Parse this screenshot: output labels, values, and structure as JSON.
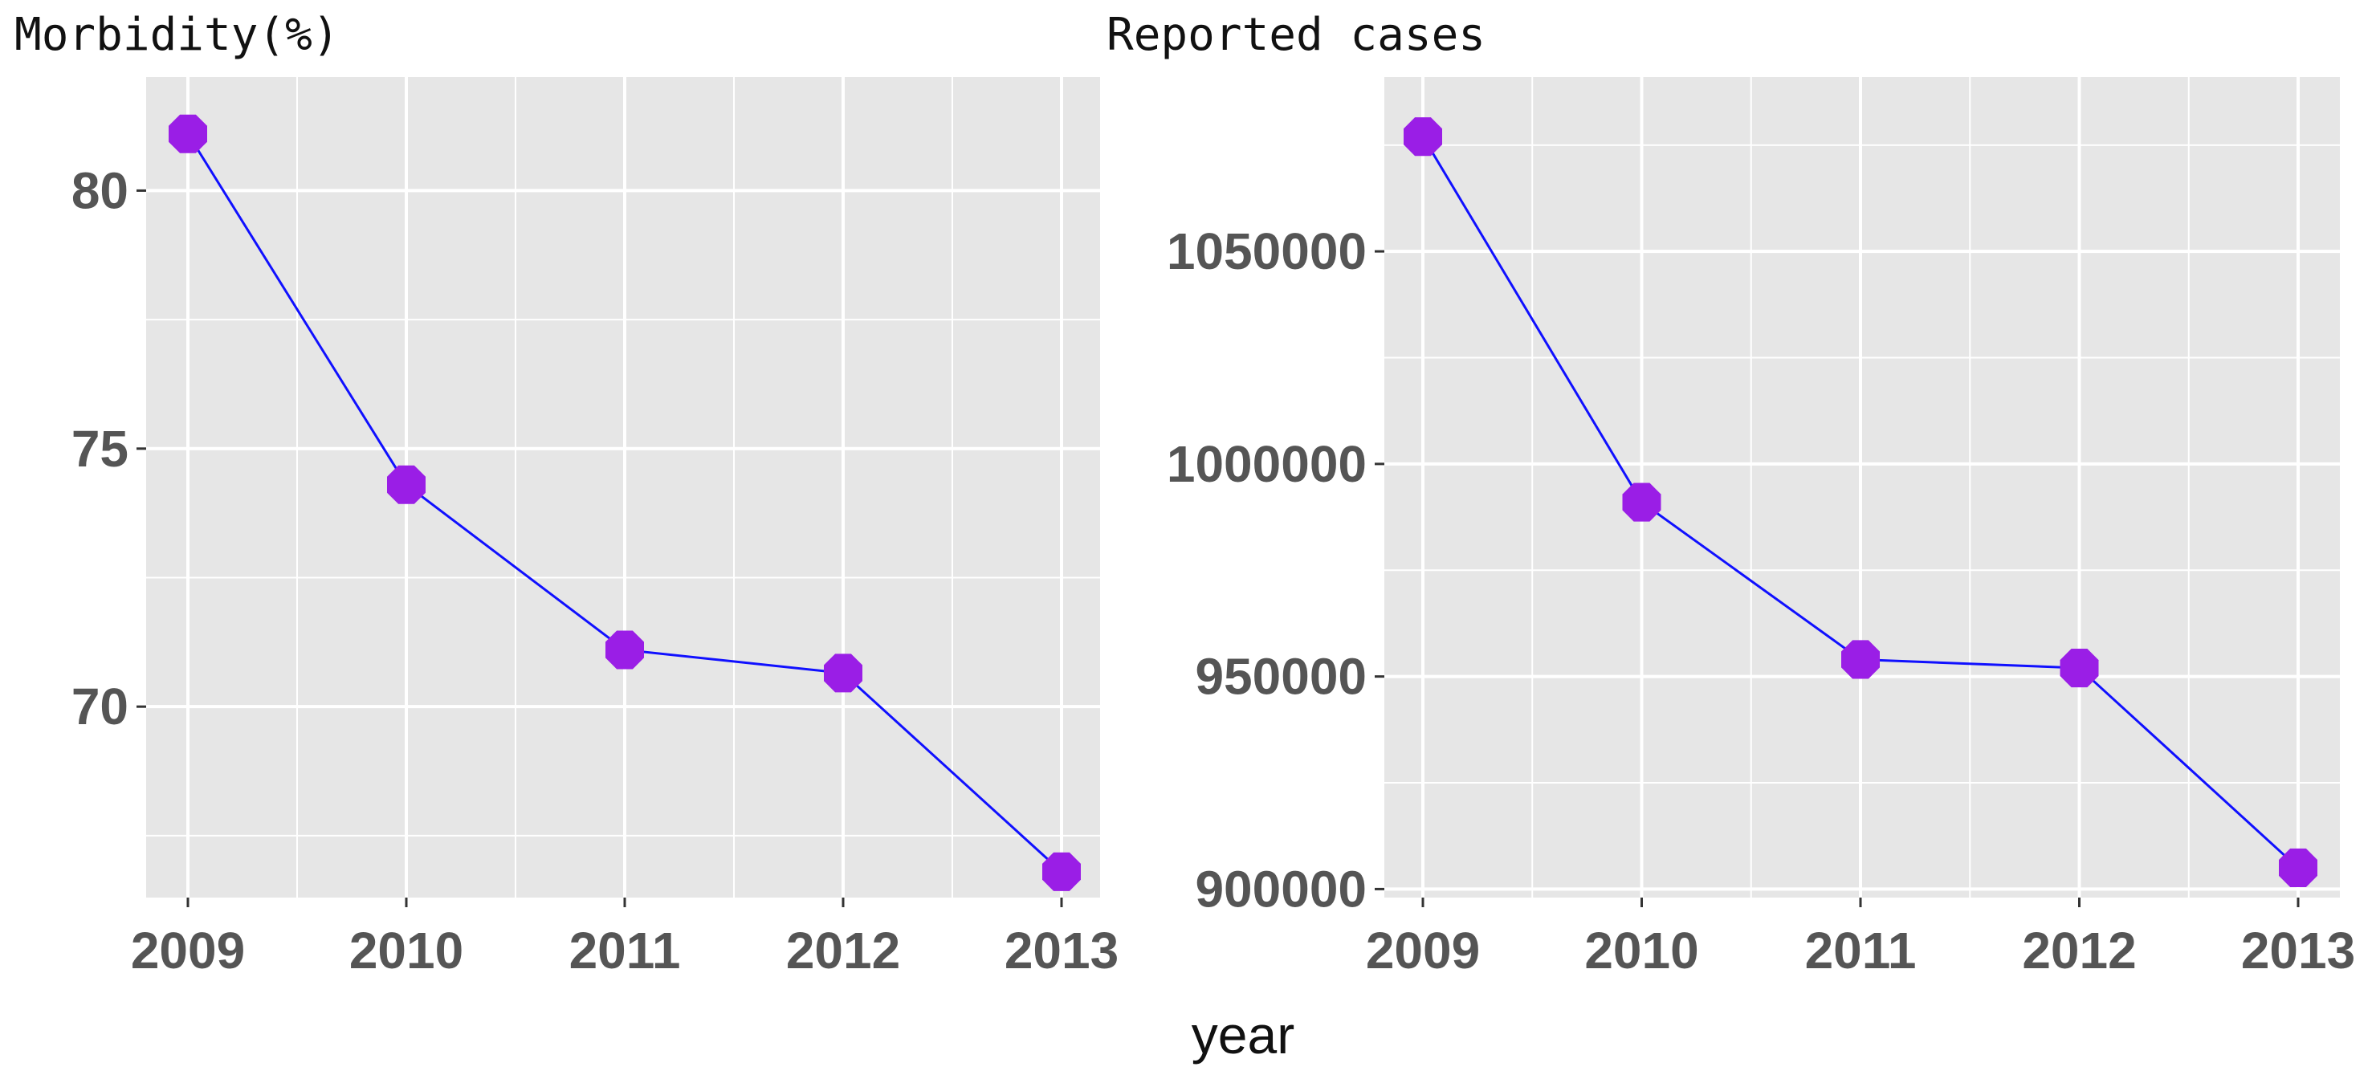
{
  "chart_data": [
    {
      "type": "line",
      "title": "Morbidity(%)",
      "xlabel": "year",
      "ylabel": "",
      "x": [
        "2009",
        "2010",
        "2011",
        "2012",
        "2013"
      ],
      "yticks": [
        70,
        75,
        80
      ],
      "ylim": [
        66.3,
        82.2
      ],
      "grid": true,
      "series": [
        {
          "values": [
            81.1,
            74.3,
            71.1,
            70.65,
            66.8
          ],
          "line_color": "#1010ff",
          "marker_color": "#9a1ee6"
        }
      ]
    },
    {
      "type": "line",
      "title": "Reported cases",
      "xlabel": "year",
      "ylabel": "",
      "x": [
        "2009",
        "2010",
        "2011",
        "2012",
        "2013"
      ],
      "yticks": [
        900000,
        950000,
        1000000,
        1050000
      ],
      "ylim": [
        898000,
        1091000
      ],
      "grid": true,
      "series": [
        {
          "values": [
            1077000,
            991000,
            954000,
            952000,
            905000
          ],
          "line_color": "#1010ff",
          "marker_color": "#9a1ee6"
        }
      ]
    }
  ],
  "shared_xlabel": "year",
  "colors": {
    "panel_bg": "#e6e6e6",
    "grid": "#ffffff",
    "line": "#1010ff",
    "marker": "#9a1ee6",
    "tick_text": "#555555"
  }
}
